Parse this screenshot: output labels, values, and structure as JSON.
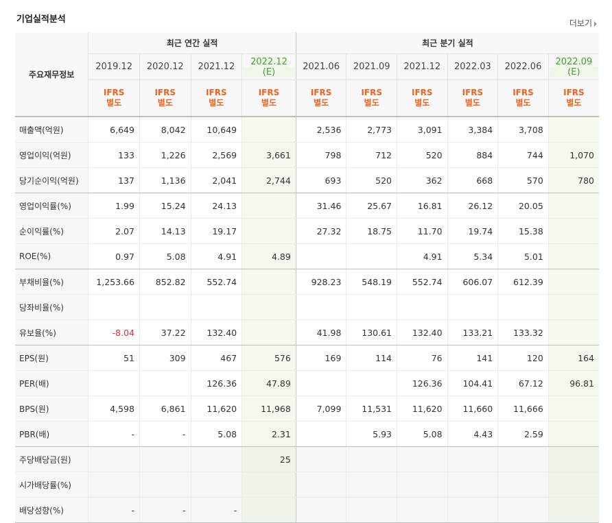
{
  "section_title": "기업실적분석",
  "more_link": "더보기",
  "header": {
    "row_label": "주요재무정보",
    "annual_group": "최근 연간 실적",
    "quarter_group": "최근 분기 실적",
    "periods": [
      {
        "date": "2019.12",
        "est": ""
      },
      {
        "date": "2020.12",
        "est": ""
      },
      {
        "date": "2021.12",
        "est": ""
      },
      {
        "date": "2022.12",
        "est": "(E)"
      },
      {
        "date": "2021.06",
        "est": ""
      },
      {
        "date": "2021.09",
        "est": ""
      },
      {
        "date": "2021.12",
        "est": ""
      },
      {
        "date": "2022.03",
        "est": ""
      },
      {
        "date": "2022.06",
        "est": ""
      },
      {
        "date": "2022.09",
        "est": "(E)"
      }
    ],
    "ifrs_line1": "IFRS",
    "ifrs_line2": "별도"
  },
  "rows": [
    {
      "label": "매출액(억원)",
      "values": [
        "6,649",
        "8,042",
        "10,649",
        "",
        "2,536",
        "2,773",
        "3,091",
        "3,384",
        "3,708",
        ""
      ]
    },
    {
      "label": "영업이익(억원)",
      "values": [
        "133",
        "1,226",
        "2,569",
        "3,661",
        "798",
        "712",
        "520",
        "884",
        "744",
        "1,070"
      ]
    },
    {
      "label": "당기순이익(억원)",
      "values": [
        "137",
        "1,136",
        "2,041",
        "2,744",
        "693",
        "520",
        "362",
        "668",
        "570",
        "780"
      ]
    },
    {
      "label": "영업이익률(%)",
      "values": [
        "1.99",
        "15.24",
        "24.13",
        "",
        "31.46",
        "25.67",
        "16.81",
        "26.12",
        "20.05",
        ""
      ]
    },
    {
      "label": "순이익률(%)",
      "values": [
        "2.07",
        "14.13",
        "19.17",
        "",
        "27.32",
        "18.75",
        "11.70",
        "19.74",
        "15.38",
        ""
      ]
    },
    {
      "label": "ROE(%)",
      "values": [
        "0.97",
        "5.08",
        "4.91",
        "4.89",
        "",
        "",
        "4.91",
        "5.34",
        "5.01",
        ""
      ]
    },
    {
      "label": "부채비율(%)",
      "values": [
        "1,253.66",
        "852.82",
        "552.74",
        "",
        "928.23",
        "548.19",
        "552.74",
        "606.07",
        "612.39",
        ""
      ]
    },
    {
      "label": "당좌비율(%)",
      "values": [
        "",
        "",
        "",
        "",
        "",
        "",
        "",
        "",
        "",
        ""
      ]
    },
    {
      "label": "유보율(%)",
      "values": [
        "-8.04",
        "37.22",
        "132.40",
        "",
        "41.98",
        "130.61",
        "132.40",
        "133.21",
        "133.32",
        ""
      ]
    },
    {
      "label": "EPS(원)",
      "values": [
        "51",
        "309",
        "467",
        "576",
        "169",
        "114",
        "76",
        "141",
        "120",
        "164"
      ]
    },
    {
      "label": "PER(배)",
      "values": [
        "",
        "",
        "126.36",
        "47.89",
        "",
        "",
        "126.36",
        "104.41",
        "67.12",
        "96.81"
      ]
    },
    {
      "label": "BPS(원)",
      "values": [
        "4,598",
        "6,861",
        "11,620",
        "11,968",
        "7,099",
        "11,531",
        "11,620",
        "11,660",
        "11,666",
        ""
      ]
    },
    {
      "label": "PBR(배)",
      "values": [
        "-",
        "-",
        "5.08",
        "2.31",
        "",
        "5.93",
        "5.08",
        "4.43",
        "2.59",
        ""
      ]
    },
    {
      "label": "주당배당금(원)",
      "values": [
        "",
        "",
        "",
        "25",
        "",
        "",
        "",
        "",
        "",
        ""
      ]
    },
    {
      "label": "시가배당률(%)",
      "values": [
        "",
        "",
        "",
        "",
        "",
        "",
        "",
        "",
        "",
        ""
      ]
    },
    {
      "label": "배당성향(%)",
      "values": [
        "-",
        "-",
        "-",
        "",
        "",
        "",
        "",
        "",
        "",
        ""
      ]
    }
  ],
  "colors": {
    "ifrs": "#f2631f",
    "estimate": "#4c9a3c",
    "negative": "#d63232"
  }
}
